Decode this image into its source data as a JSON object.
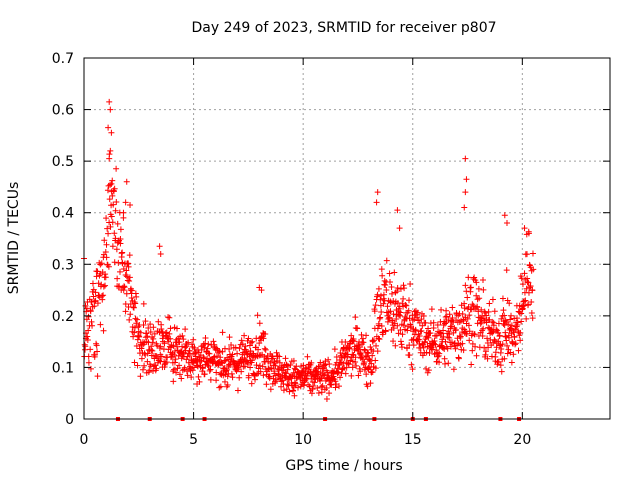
{
  "chart_data": {
    "type": "scatter",
    "title": "Day 249 of 2023, SRMTID for receiver p807",
    "xlabel": "GPS time / hours",
    "ylabel": "SRMTID / TECUs",
    "xlim": [
      0,
      24
    ],
    "ylim": [
      0,
      0.7
    ],
    "x_ticks": [
      0,
      5,
      10,
      15,
      20
    ],
    "y_ticks": [
      0,
      0.1,
      0.2,
      0.3,
      0.4,
      0.5,
      0.6,
      0.7
    ],
    "x_tick_labels": [
      "0",
      "5",
      "10",
      "15",
      "20"
    ],
    "y_tick_labels": [
      "0",
      "0.1",
      "0.2",
      "0.3",
      "0.4",
      "0.5",
      "0.6",
      "0.7"
    ],
    "grid": true,
    "marker": "+",
    "color": "#ff0000",
    "data_span_hours": [
      0.0,
      20.5
    ],
    "envelope": {
      "x": [
        0.0,
        0.3,
        0.6,
        0.9,
        1.1,
        1.3,
        1.6,
        1.9,
        2.2,
        2.5,
        3.0,
        3.5,
        4.0,
        4.5,
        5.0,
        5.5,
        6.0,
        6.5,
        7.0,
        7.5,
        8.0,
        8.5,
        9.0,
        9.5,
        10.0,
        10.5,
        11.0,
        11.5,
        12.0,
        12.5,
        13.0,
        13.3,
        13.6,
        14.0,
        14.5,
        15.0,
        15.5,
        16.0,
        16.5,
        17.0,
        17.4,
        17.8,
        18.2,
        18.6,
        19.0,
        19.3,
        19.6,
        19.9,
        20.2,
        20.5
      ],
      "center": [
        0.16,
        0.18,
        0.22,
        0.28,
        0.38,
        0.45,
        0.3,
        0.3,
        0.22,
        0.16,
        0.13,
        0.14,
        0.14,
        0.13,
        0.12,
        0.12,
        0.12,
        0.1,
        0.11,
        0.12,
        0.14,
        0.11,
        0.09,
        0.08,
        0.08,
        0.08,
        0.08,
        0.09,
        0.12,
        0.14,
        0.11,
        0.16,
        0.22,
        0.22,
        0.2,
        0.18,
        0.15,
        0.15,
        0.16,
        0.17,
        0.2,
        0.21,
        0.18,
        0.16,
        0.16,
        0.18,
        0.15,
        0.2,
        0.28,
        0.28
      ],
      "spread": [
        0.05,
        0.07,
        0.08,
        0.09,
        0.12,
        0.12,
        0.1,
        0.09,
        0.07,
        0.06,
        0.05,
        0.05,
        0.05,
        0.05,
        0.04,
        0.04,
        0.04,
        0.04,
        0.04,
        0.04,
        0.05,
        0.04,
        0.03,
        0.03,
        0.03,
        0.03,
        0.03,
        0.03,
        0.04,
        0.04,
        0.04,
        0.07,
        0.08,
        0.08,
        0.07,
        0.06,
        0.05,
        0.05,
        0.05,
        0.06,
        0.07,
        0.07,
        0.06,
        0.05,
        0.06,
        0.07,
        0.05,
        0.06,
        0.07,
        0.07
      ]
    },
    "notable_points": [
      {
        "x": 1.15,
        "y": 0.615
      },
      {
        "x": 1.2,
        "y": 0.6
      },
      {
        "x": 1.1,
        "y": 0.565
      },
      {
        "x": 1.25,
        "y": 0.555
      },
      {
        "x": 1.2,
        "y": 0.52
      },
      {
        "x": 1.15,
        "y": 0.505
      },
      {
        "x": 1.95,
        "y": 0.46
      },
      {
        "x": 1.9,
        "y": 0.42
      },
      {
        "x": 2.1,
        "y": 0.415
      },
      {
        "x": 1.8,
        "y": 0.4
      },
      {
        "x": 17.4,
        "y": 0.505
      },
      {
        "x": 17.45,
        "y": 0.465
      },
      {
        "x": 17.4,
        "y": 0.44
      },
      {
        "x": 17.35,
        "y": 0.41
      },
      {
        "x": 13.4,
        "y": 0.44
      },
      {
        "x": 13.35,
        "y": 0.42
      },
      {
        "x": 14.3,
        "y": 0.405
      },
      {
        "x": 14.4,
        "y": 0.37
      },
      {
        "x": 19.2,
        "y": 0.395
      },
      {
        "x": 19.3,
        "y": 0.38
      },
      {
        "x": 20.1,
        "y": 0.37
      },
      {
        "x": 20.3,
        "y": 0.36
      },
      {
        "x": 3.45,
        "y": 0.335
      },
      {
        "x": 3.5,
        "y": 0.32
      },
      {
        "x": 8.0,
        "y": 0.255
      },
      {
        "x": 8.1,
        "y": 0.25
      },
      {
        "x": 9.6,
        "y": 0.045
      },
      {
        "x": 10.4,
        "y": 0.05
      }
    ],
    "baseline_markers_x": [
      1.55,
      3.0,
      4.5,
      5.5,
      11.0,
      13.25,
      15.0,
      15.6,
      19.0,
      19.85
    ]
  }
}
